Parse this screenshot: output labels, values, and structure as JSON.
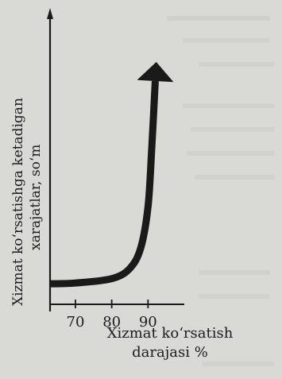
{
  "chart_data": {
    "type": "line",
    "ylabel_line1": "Xizmat ko‘rsatishga ketadigan",
    "ylabel_line2": "xarajatlar, so‘m",
    "xlabel_line1": "Xizmat ko‘rsatish",
    "xlabel_line2": "darajasi %",
    "x_ticks": [
      {
        "value": 70,
        "label": "70"
      },
      {
        "value": 80,
        "label": "80"
      },
      {
        "value": 90,
        "label": "90"
      }
    ],
    "xlim": [
      63,
      100
    ],
    "ylim": [
      0,
      100
    ],
    "series": [
      {
        "points": [
          {
            "x": 63,
            "y": 8
          },
          {
            "x": 70,
            "y": 8.3
          },
          {
            "x": 80,
            "y": 10
          },
          {
            "x": 85,
            "y": 14
          },
          {
            "x": 88,
            "y": 22
          },
          {
            "x": 90,
            "y": 38
          },
          {
            "x": 91,
            "y": 60
          },
          {
            "x": 92,
            "y": 87
          }
        ],
        "arrow_end": true,
        "color": "#1a1a1a"
      }
    ],
    "grid": false
  }
}
